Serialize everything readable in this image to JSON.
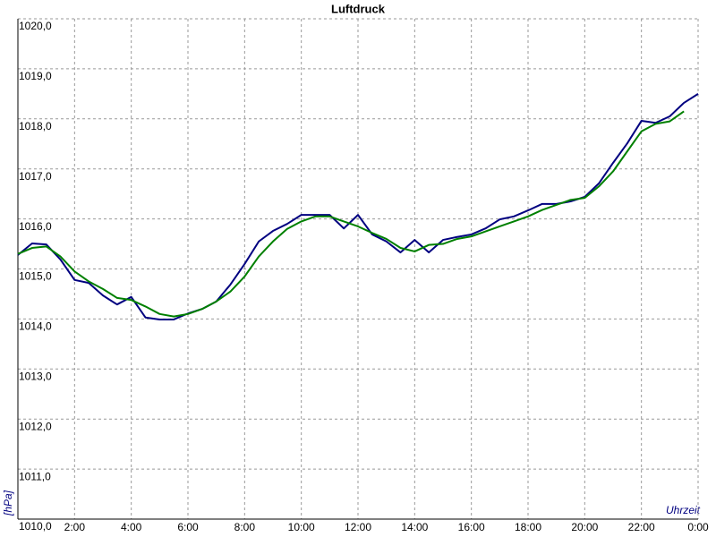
{
  "chart_data": {
    "type": "line",
    "title": "Luftdruck",
    "x_label": "Uhrzeit",
    "y_label": "[hPa]",
    "x": [
      0,
      0.5,
      1,
      1.5,
      2,
      2.5,
      3,
      3.5,
      4,
      4.5,
      5,
      5.5,
      6,
      6.5,
      7,
      7.5,
      8,
      8.5,
      9,
      9.5,
      10,
      10.5,
      11,
      11.5,
      12,
      12.5,
      13,
      13.5,
      14,
      14.5,
      15,
      15.5,
      16,
      16.5,
      17,
      17.5,
      18,
      18.5,
      19,
      19.5,
      20,
      20.5,
      21,
      21.5,
      22,
      22.5,
      23,
      23.5,
      24
    ],
    "series": [
      {
        "color": "#000080",
        "values": [
          1015.28,
          1015.51,
          1015.49,
          1015.19,
          1014.78,
          1014.72,
          1014.47,
          1014.29,
          1014.44,
          1014.03,
          1013.99,
          1013.99,
          1014.11,
          1014.2,
          1014.35,
          1014.69,
          1015.1,
          1015.55,
          1015.76,
          1015.9,
          1016.08,
          1016.08,
          1016.08,
          1015.81,
          1016.08,
          1015.69,
          1015.55,
          1015.33,
          1015.58,
          1015.33,
          1015.58,
          1015.64,
          1015.69,
          1015.81,
          1015.99,
          1016.05,
          1016.17,
          1016.3,
          1016.3,
          1016.35,
          1016.44,
          1016.71,
          1017.12,
          1017.51,
          1017.96,
          1017.92,
          1018.05,
          1018.32,
          1018.5
        ]
      },
      {
        "color": "#008000",
        "values": [
          1015.3,
          1015.42,
          1015.45,
          1015.25,
          1014.95,
          1014.75,
          1014.6,
          1014.42,
          1014.38,
          1014.25,
          1014.1,
          1014.05,
          1014.1,
          1014.2,
          1014.35,
          1014.55,
          1014.85,
          1015.25,
          1015.55,
          1015.8,
          1015.95,
          1016.05,
          1016.05,
          1015.95,
          1015.85,
          1015.72,
          1015.6,
          1015.42,
          1015.35,
          1015.48,
          1015.5,
          1015.6,
          1015.65,
          1015.75,
          1015.85,
          1015.95,
          1016.05,
          1016.18,
          1016.28,
          1016.38,
          1016.42,
          1016.65,
          1016.95,
          1017.35,
          1017.75,
          1017.9,
          1017.95,
          1018.15,
          null
        ]
      }
    ],
    "xlim": [
      0,
      24
    ],
    "xticks": [
      {
        "value": 2,
        "label": "2:00"
      },
      {
        "value": 4,
        "label": "4:00"
      },
      {
        "value": 6,
        "label": "6:00"
      },
      {
        "value": 8,
        "label": "8:00"
      },
      {
        "value": 10,
        "label": "10:00"
      },
      {
        "value": 12,
        "label": "12:00"
      },
      {
        "value": 14,
        "label": "14:00"
      },
      {
        "value": 16,
        "label": "16:00"
      },
      {
        "value": 18,
        "label": "18:00"
      },
      {
        "value": 20,
        "label": "20:00"
      },
      {
        "value": 22,
        "label": "22:00"
      },
      {
        "value": 24,
        "label": "0:00"
      }
    ],
    "ylim": [
      1010,
      1020
    ],
    "yticks": [
      {
        "value": 1010,
        "label": "1010,0"
      },
      {
        "value": 1011,
        "label": "1011,0"
      },
      {
        "value": 1012,
        "label": "1012,0"
      },
      {
        "value": 1013,
        "label": "1013,0"
      },
      {
        "value": 1014,
        "label": "1014,0"
      },
      {
        "value": 1015,
        "label": "1015,0"
      },
      {
        "value": 1016,
        "label": "1016,0"
      },
      {
        "value": 1017,
        "label": "1017,0"
      },
      {
        "value": 1018,
        "label": "1018,0"
      },
      {
        "value": 1019,
        "label": "1019,0"
      },
      {
        "value": 1020,
        "label": "1020,0"
      }
    ],
    "grid": true
  }
}
